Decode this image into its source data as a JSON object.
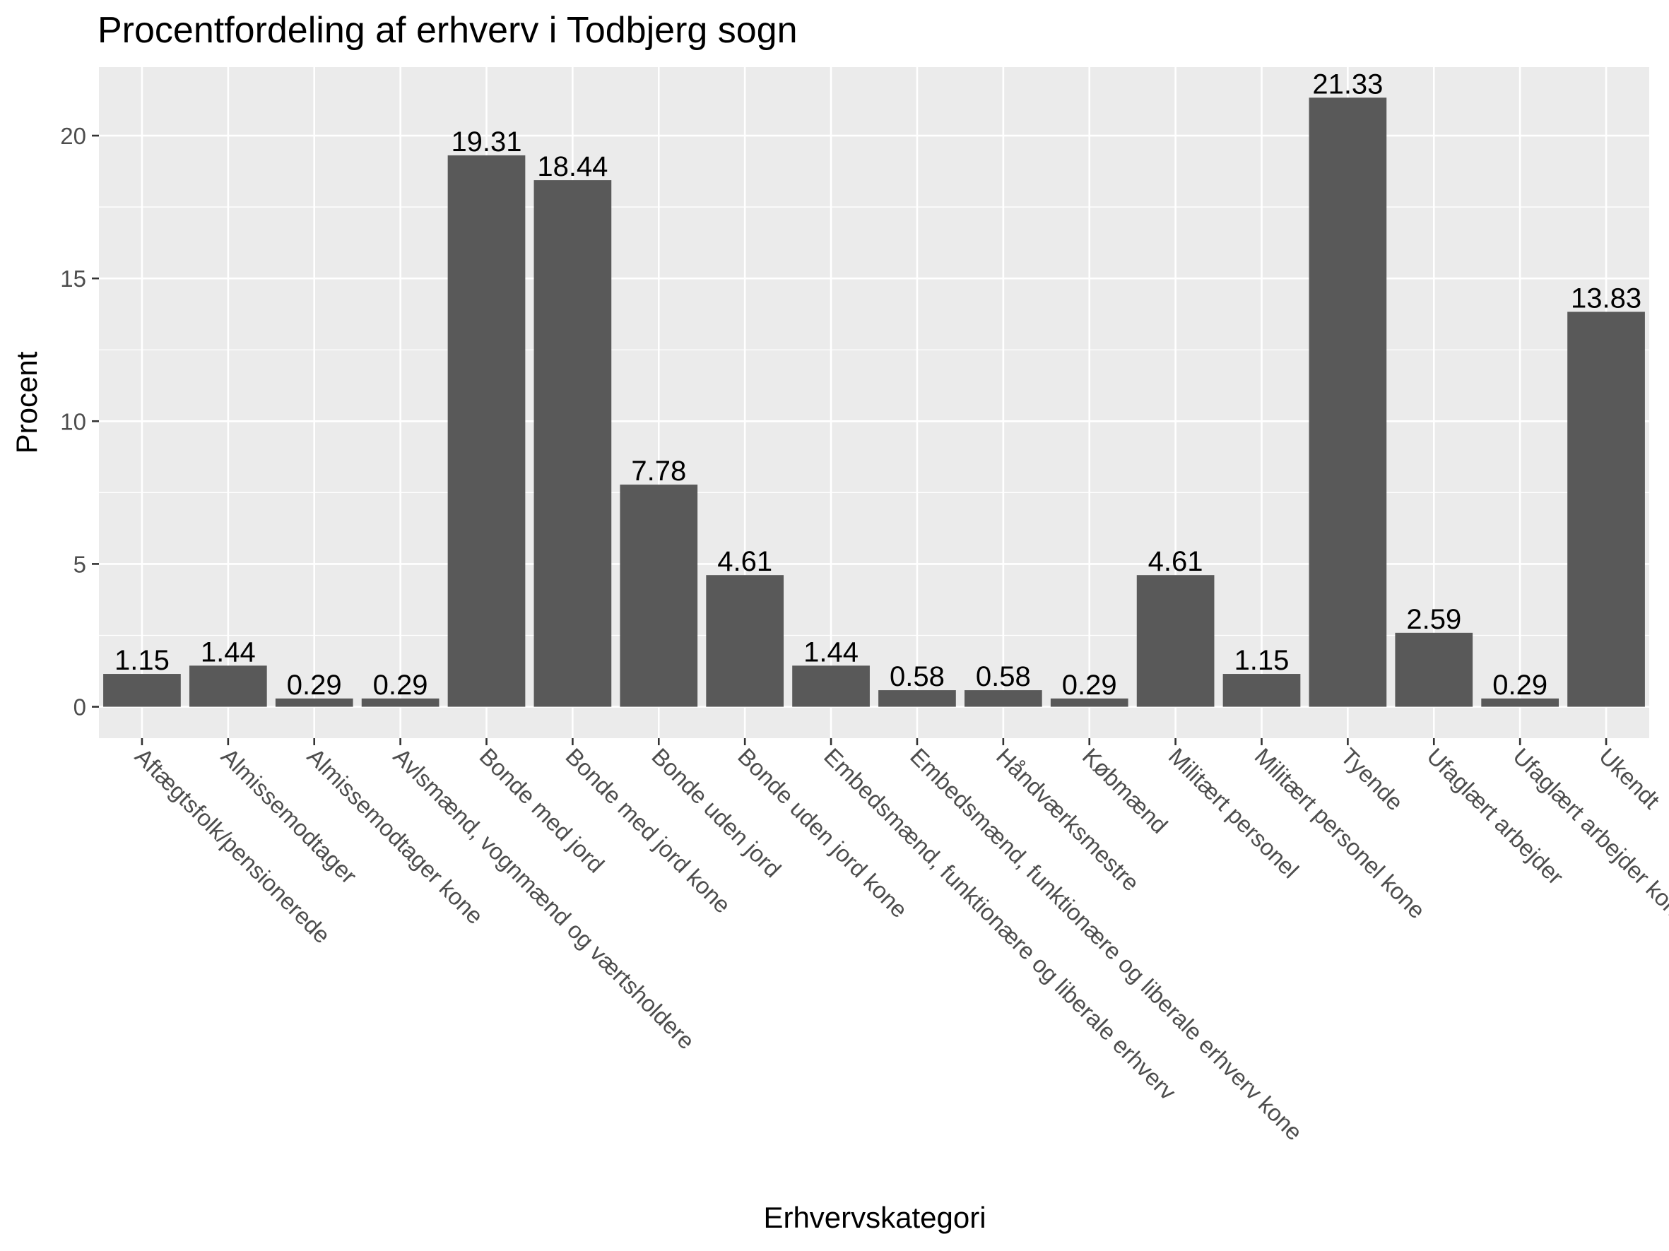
{
  "chart_data": {
    "type": "bar",
    "title": "Procentfordeling af erhverv i Todbjerg sogn",
    "xlabel": "Erhvervskategori",
    "ylabel": "Procent",
    "ylim": [
      -1.1,
      22.4
    ],
    "yticks": [
      0,
      5,
      10,
      15,
      20
    ],
    "grid": true,
    "bar_color": "#595959",
    "panel_color": "#ebebeb",
    "categories": [
      "Aftægtsfolk/pensionerede",
      "Almissemodtager",
      "Almissemodtager kone",
      "Avlsmænd, vognmænd og værtsholdere",
      "Bonde med jord",
      "Bonde med jord kone",
      "Bonde uden jord",
      "Bonde uden jord kone",
      "Embedsmænd, funktionære og liberale erhverv",
      "Embedsmænd, funktionære og liberale erhverv kone",
      "Håndværksmestre",
      "Købmænd",
      "Militært personel",
      "Militært personel kone",
      "Tyende",
      "Ufaglært arbejder",
      "Ufaglært arbejder kone",
      "Ukendt"
    ],
    "values": [
      1.15,
      1.44,
      0.29,
      0.29,
      19.31,
      18.44,
      7.78,
      4.61,
      1.44,
      0.58,
      0.58,
      0.29,
      4.61,
      1.15,
      21.33,
      2.59,
      0.29,
      13.83
    ],
    "value_labels": [
      "1.15",
      "1.44",
      "0.29",
      "0.29",
      "19.31",
      "18.44",
      "7.78",
      "4.61",
      "1.44",
      "0.58",
      "0.58",
      "0.29",
      "4.61",
      "1.15",
      "21.33",
      "2.59",
      "0.29",
      "13.83"
    ]
  }
}
